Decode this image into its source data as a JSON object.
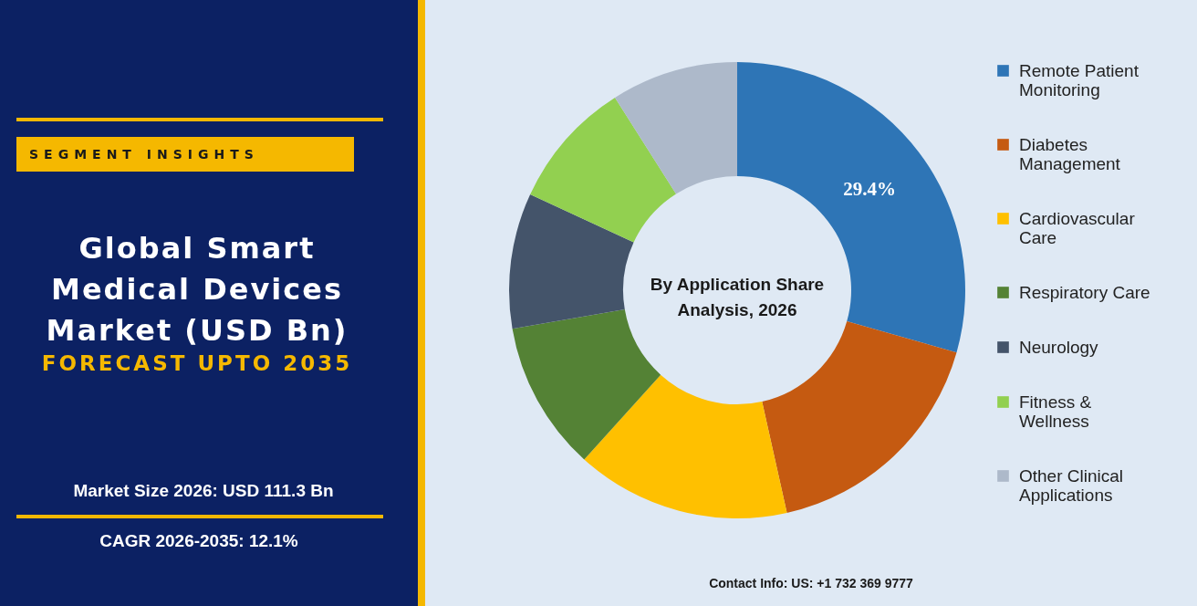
{
  "chart_data": {
    "type": "donut",
    "title": "Global Smart Medical Devices Market (USD Bn)",
    "subtitle": "FORECAST UPTO 2035",
    "annotations": [
      "SEGMENT INSIGHTS",
      "Market Size 2026: USD 111.3 Bn",
      "CAGR 2026-2035: 12.1%",
      "By Application Share Analysis, 2026",
      "Contact Info: US: +1 732 369 9777"
    ],
    "categories": [
      "Remote Patient Monitoring",
      "Diabetes Management",
      "Cardiovascular Care",
      "Respiratory Care",
      "Neurology",
      "Fitness & Wellness",
      "Other Clinical Applications"
    ],
    "values": [
      29.4,
      17.1,
      15.2,
      10.6,
      9.6,
      9.1,
      9.0
    ],
    "value_labels": [
      "29.4%",
      null,
      null,
      null,
      null,
      null,
      null
    ],
    "colors": [
      "#2e75b6",
      "#c55a11",
      "#ffc000",
      "#548235",
      "#44546a",
      "#92d050",
      "#adb9ca"
    ],
    "legend": "right"
  }
}
